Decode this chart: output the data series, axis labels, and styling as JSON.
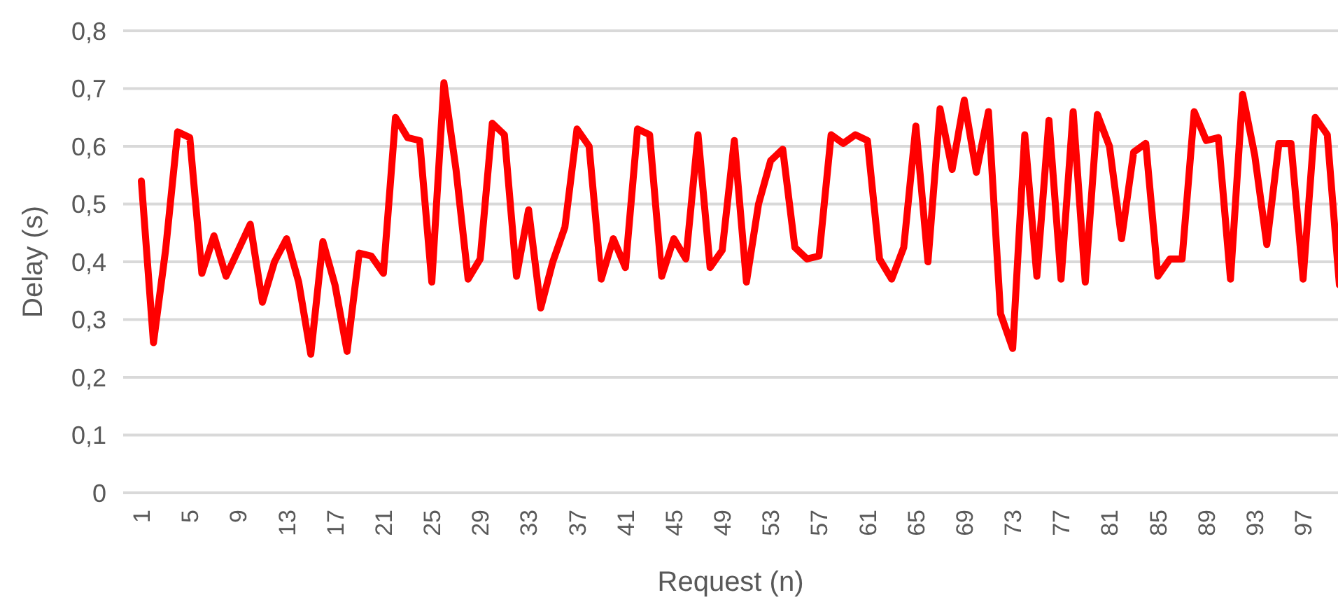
{
  "chart_data": {
    "type": "line",
    "xlabel": "Request (n)",
    "ylabel": "Delay (s)",
    "categories": [
      "1",
      null,
      null,
      null,
      "5",
      null,
      null,
      null,
      "9",
      null,
      null,
      null,
      "13",
      null,
      null,
      null,
      "17",
      null,
      null,
      null,
      "21",
      null,
      null,
      null,
      "25",
      null,
      null,
      null,
      "29",
      null,
      null,
      null,
      "33",
      null,
      null,
      null,
      "37",
      null,
      null,
      null,
      "41",
      null,
      null,
      null,
      "45",
      null,
      null,
      null,
      "49",
      null,
      null,
      null,
      "53",
      null,
      null,
      null,
      "57",
      null,
      null,
      null,
      "61",
      null,
      null,
      null,
      "65",
      null,
      null,
      null,
      "69",
      null,
      null,
      null,
      "73",
      null,
      null,
      null,
      "77",
      null,
      null,
      null,
      "81",
      null,
      null,
      null,
      "85",
      null,
      null,
      null,
      "89",
      null,
      null,
      null,
      "93",
      null,
      null,
      null,
      "97",
      null,
      null,
      null
    ],
    "series": [
      {
        "color": "#ff0000",
        "values": [
          0.54,
          0.26,
          0.42,
          0.625,
          0.615,
          0.38,
          0.445,
          0.375,
          0.42,
          0.465,
          0.33,
          0.4,
          0.44,
          0.365,
          0.24,
          0.435,
          0.36,
          0.245,
          0.415,
          0.41,
          0.38,
          0.65,
          0.615,
          0.61,
          0.365,
          0.71,
          0.56,
          0.37,
          0.405,
          0.64,
          0.62,
          0.375,
          0.49,
          0.32,
          0.4,
          0.46,
          0.63,
          0.6,
          0.37,
          0.44,
          0.39,
          0.63,
          0.62,
          0.375,
          0.44,
          0.405,
          0.62,
          0.39,
          0.42,
          0.61,
          0.365,
          0.5,
          0.575,
          0.595,
          0.425,
          0.405,
          0.41,
          0.62,
          0.605,
          0.62,
          0.61,
          0.405,
          0.37,
          0.425,
          0.635,
          0.4,
          0.665,
          0.56,
          0.68,
          0.555,
          0.66,
          0.31,
          0.25,
          0.62,
          0.375,
          0.645,
          0.37,
          0.66,
          0.365,
          0.655,
          0.6,
          0.44,
          0.59,
          0.605,
          0.375,
          0.405,
          0.405,
          0.66,
          0.61,
          0.615,
          0.37,
          0.69,
          0.585,
          0.43,
          0.605,
          0.605,
          0.37,
          0.65,
          0.62,
          0.36
        ]
      }
    ],
    "ylim": [
      0,
      0.8
    ],
    "yticks": [
      {
        "value": 0,
        "label": "0"
      },
      {
        "value": 0.1,
        "label": "0,1"
      },
      {
        "value": 0.2,
        "label": "0,2"
      },
      {
        "value": 0.3,
        "label": "0,3"
      },
      {
        "value": 0.4,
        "label": "0,4"
      },
      {
        "value": 0.5,
        "label": "0,5"
      },
      {
        "value": 0.6,
        "label": "0,6"
      },
      {
        "value": 0.7,
        "label": "0,7"
      },
      {
        "value": 0.8,
        "label": "0,8"
      }
    ],
    "grid": "y",
    "marker": "none",
    "line_style": "solid"
  }
}
